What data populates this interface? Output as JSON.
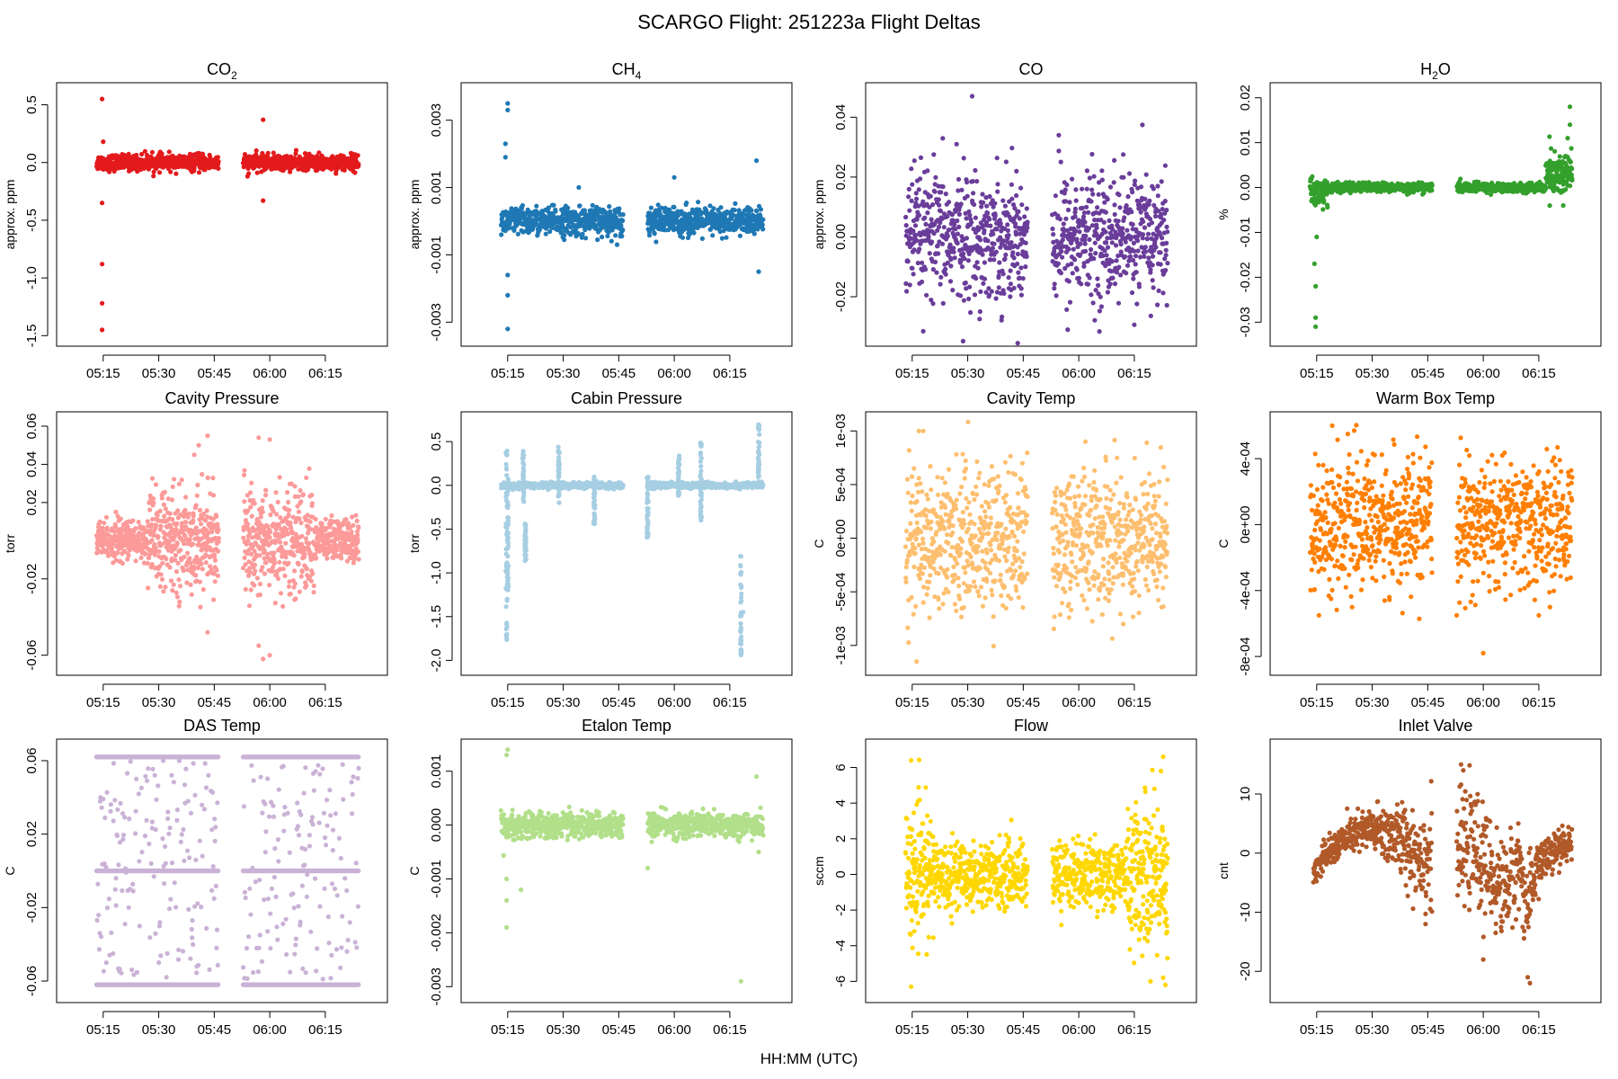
{
  "title": "SCARGO Flight: 251223a  Flight Deltas",
  "xlabel": "HH:MM (UTC)",
  "chart_data": [
    {
      "type": "scatter",
      "title_base": "CO",
      "title_sub": "2",
      "ylabel": "approx. ppm",
      "color": "#e31a1c",
      "ylim": [
        -1.5,
        0.6
      ],
      "yticks": [
        -1.5,
        -1.0,
        -0.5,
        0.0,
        0.5
      ],
      "yticklabels": [
        "-1.5",
        "-1.0",
        "-0.5",
        "0.0",
        "0.5"
      ],
      "xlim": [
        5.1,
        6.47
      ],
      "xticks": [
        5.25,
        5.5,
        5.75,
        6.0,
        6.25
      ],
      "xticklabels": [
        "05:15",
        "05:30",
        "05:45",
        "06:00",
        "06:15"
      ],
      "gap": [
        5.77,
        5.88
      ],
      "x_end": 6.4,
      "band": [
        {
          "x0": 5.22,
          "x1": 6.4,
          "c": 0.0,
          "hw": 0.08
        }
      ],
      "outliers": [
        [
          5.245,
          0.55
        ],
        [
          5.245,
          -1.45
        ],
        [
          5.245,
          -1.22
        ],
        [
          5.245,
          -0.88
        ],
        [
          5.245,
          -0.35
        ],
        [
          5.25,
          0.18
        ],
        [
          5.97,
          0.37
        ],
        [
          5.97,
          -0.33
        ],
        [
          5.9,
          -0.12
        ]
      ]
    },
    {
      "type": "scatter",
      "title_base": "CH",
      "title_sub": "4",
      "ylabel": "approx. ppm",
      "color": "#1f78b4",
      "ylim": [
        -0.0034,
        0.0038
      ],
      "yticks": [
        -0.003,
        -0.001,
        0.001,
        0.003
      ],
      "yticklabels": [
        "-0.003",
        "-0.001",
        "0.001",
        "0.003"
      ],
      "xlim": [
        5.1,
        6.47
      ],
      "xticks": [
        5.25,
        5.5,
        5.75,
        6.0,
        6.25
      ],
      "xticklabels": [
        "05:15",
        "05:30",
        "05:45",
        "06:00",
        "06:15"
      ],
      "gap": [
        5.77,
        5.88
      ],
      "x_end": 6.4,
      "band": [
        {
          "x0": 5.22,
          "x1": 6.4,
          "c": 0.0,
          "hw": 0.0005
        }
      ],
      "outliers": [
        [
          5.25,
          0.0033
        ],
        [
          5.25,
          0.0035
        ],
        [
          5.24,
          0.0023
        ],
        [
          5.24,
          0.0019
        ],
        [
          5.25,
          -0.0022
        ],
        [
          5.25,
          -0.0032
        ],
        [
          5.25,
          -0.0016
        ],
        [
          6.38,
          -0.0015
        ],
        [
          6.37,
          0.0018
        ],
        [
          6.0,
          0.0013
        ],
        [
          5.57,
          0.001
        ]
      ]
    },
    {
      "type": "scatter",
      "title_base": "CO",
      "title_sub": "",
      "ylabel": "approx. ppm",
      "color": "#6a3d9a",
      "ylim": [
        -0.033,
        0.048
      ],
      "yticks": [
        -0.02,
        0.0,
        0.02,
        0.04
      ],
      "yticklabels": [
        "-0.02",
        "0.00",
        "0.02",
        "0.04"
      ],
      "xlim": [
        5.1,
        6.47
      ],
      "xticks": [
        5.25,
        5.5,
        5.75,
        6.0,
        6.25
      ],
      "xticklabels": [
        "05:15",
        "05:30",
        "05:45",
        "06:00",
        "06:15"
      ],
      "gap": [
        5.77,
        5.88
      ],
      "x_end": 6.4,
      "band": [
        {
          "x0": 5.22,
          "x1": 6.4,
          "c": 0.0,
          "hw": 0.025
        }
      ],
      "outliers": [
        [
          5.52,
          0.047
        ],
        [
          5.45,
          0.031
        ],
        [
          5.91,
          0.034
        ],
        [
          5.95,
          -0.031
        ]
      ]
    },
    {
      "type": "scatter",
      "title_base": "H",
      "title_sub": "2",
      "title_tail": "O",
      "ylabel": "%",
      "color": "#33a02c",
      "ylim": [
        -0.033,
        0.021
      ],
      "yticks": [
        -0.03,
        -0.02,
        -0.01,
        0.0,
        0.01,
        0.02
      ],
      "yticklabels": [
        "-0.03",
        "-0.02",
        "-0.01",
        "0.00",
        "0.01",
        "0.02"
      ],
      "xlim": [
        5.1,
        6.47
      ],
      "xticks": [
        5.25,
        5.5,
        5.75,
        6.0,
        6.25
      ],
      "xticklabels": [
        "05:15",
        "05:30",
        "05:45",
        "06:00",
        "06:15"
      ],
      "gap": [
        5.77,
        5.88
      ],
      "x_end": 6.4,
      "band": [
        {
          "x0": 5.22,
          "x1": 5.3,
          "c": -0.001,
          "hw": 0.004
        },
        {
          "x0": 5.3,
          "x1": 6.28,
          "c": 0.0,
          "hw": 0.0012
        },
        {
          "x0": 6.28,
          "x1": 6.4,
          "c": 0.003,
          "hw": 0.006
        }
      ],
      "outliers": [
        [
          5.245,
          -0.031
        ],
        [
          5.245,
          -0.029
        ],
        [
          5.245,
          -0.022
        ],
        [
          5.24,
          -0.017
        ],
        [
          5.25,
          -0.011
        ],
        [
          6.39,
          0.018
        ],
        [
          6.39,
          0.014
        ],
        [
          6.38,
          0.011
        ],
        [
          6.37,
          0.007
        ],
        [
          6.36,
          -0.004
        ]
      ]
    },
    {
      "type": "scatter",
      "title_base": "Cavity Pressure",
      "title_sub": "",
      "ylabel": "torr",
      "color": "#fb9a99",
      "ylim": [
        -0.065,
        0.062
      ],
      "yticks": [
        -0.06,
        -0.02,
        0.02,
        0.04,
        0.06
      ],
      "yticklabels": [
        "-0.06",
        "-0.02",
        "0.02",
        "0.04",
        "0.06"
      ],
      "xlim": [
        5.1,
        6.47
      ],
      "xticks": [
        5.25,
        5.5,
        5.75,
        6.0,
        6.25
      ],
      "xticklabels": [
        "05:15",
        "05:30",
        "05:45",
        "06:00",
        "06:15"
      ],
      "gap": [
        5.77,
        5.88
      ],
      "x_end": 6.4,
      "band": [
        {
          "x0": 5.22,
          "x1": 5.45,
          "c": 0.0,
          "hw": 0.012
        },
        {
          "x0": 5.45,
          "x1": 5.77,
          "c": 0.0,
          "hw": 0.03
        },
        {
          "x0": 5.88,
          "x1": 6.2,
          "c": 0.0,
          "hw": 0.032
        },
        {
          "x0": 6.2,
          "x1": 6.4,
          "c": 0.0,
          "hw": 0.014
        }
      ],
      "outliers": [
        [
          5.72,
          0.055
        ],
        [
          5.68,
          0.05
        ],
        [
          5.95,
          0.054
        ],
        [
          6.0,
          0.053
        ],
        [
          5.72,
          -0.048
        ],
        [
          5.97,
          -0.062
        ],
        [
          6.0,
          -0.06
        ],
        [
          5.95,
          -0.055
        ],
        [
          5.66,
          0.045
        ]
      ]
    },
    {
      "type": "scatter",
      "title_base": "Cabin Pressure",
      "title_sub": "",
      "ylabel": "torr",
      "color": "#a6cee3",
      "ylim": [
        -2.05,
        0.72
      ],
      "yticks": [
        -2.0,
        -1.5,
        -1.0,
        -0.5,
        0.0,
        0.5
      ],
      "yticklabels": [
        "-2.0",
        "-1.5",
        "-1.0",
        "-0.5",
        "0.0",
        "0.5"
      ],
      "xlim": [
        5.1,
        6.47
      ],
      "xticks": [
        5.25,
        5.5,
        5.75,
        6.0,
        6.25
      ],
      "xticklabels": [
        "05:15",
        "05:30",
        "05:45",
        "06:00",
        "06:15"
      ],
      "gap": [
        5.77,
        5.88
      ],
      "x_end": 6.4,
      "band": [
        {
          "x0": 5.22,
          "x1": 6.4,
          "c": 0.0,
          "hw": 0.04
        }
      ],
      "spikes": [
        [
          5.245,
          -1.8,
          0.4
        ],
        [
          5.25,
          -1.2,
          0.1
        ],
        [
          5.32,
          -0.2,
          0.4
        ],
        [
          5.48,
          -0.2,
          0.45
        ],
        [
          5.64,
          -0.45,
          0.1
        ],
        [
          5.88,
          -0.6,
          0.1
        ],
        [
          6.02,
          -0.15,
          0.35
        ],
        [
          6.12,
          -0.4,
          0.5
        ],
        [
          6.3,
          -1.95,
          -0.8
        ],
        [
          6.38,
          0.0,
          0.7
        ],
        [
          5.33,
          -0.9,
          -0.4
        ]
      ],
      "outliers": [
        [
          5.245,
          -1.75
        ],
        [
          6.3,
          -1.9
        ],
        [
          6.31,
          -1.45
        ]
      ]
    },
    {
      "type": "scatter",
      "title_base": "Cavity Temp",
      "title_sub": "",
      "ylabel": "C",
      "color": "#fdbf6f",
      "ylim": [
        -0.00118,
        0.00108
      ],
      "yticks": [
        -0.001,
        -0.0005,
        0.0,
        0.0005,
        0.001
      ],
      "yticklabels": [
        "-1e-03",
        "-5e-04",
        "0e+00",
        "5e-04",
        "1e-03"
      ],
      "xlim": [
        5.1,
        6.47
      ],
      "xticks": [
        5.25,
        5.5,
        5.75,
        6.0,
        6.25
      ],
      "xticklabels": [
        "05:15",
        "05:30",
        "05:45",
        "06:00",
        "06:15"
      ],
      "gap": [
        5.77,
        5.88
      ],
      "x_end": 6.4,
      "band": [
        {
          "x0": 5.22,
          "x1": 6.4,
          "c": 0.0,
          "hw": 0.00078
        }
      ],
      "outliers": [
        [
          5.28,
          0.001
        ],
        [
          5.3,
          0.001
        ],
        [
          5.27,
          -0.00115
        ],
        [
          6.03,
          0.0009
        ],
        [
          6.2,
          -0.0008
        ]
      ]
    },
    {
      "type": "scatter",
      "title_base": "Warm Box Temp",
      "title_sub": "",
      "ylabel": "C",
      "color": "#ff7f00",
      "ylim": [
        -0.00085,
        0.00062
      ],
      "yticks": [
        -0.0008,
        -0.0004,
        0.0,
        0.0004
      ],
      "yticklabels": [
        "-8e-04",
        "-4e-04",
        "0e+00",
        "4e-04"
      ],
      "xlim": [
        5.1,
        6.47
      ],
      "xticks": [
        5.25,
        5.5,
        5.75,
        6.0,
        6.25
      ],
      "xticklabels": [
        "05:15",
        "05:30",
        "05:45",
        "06:00",
        "06:15"
      ],
      "gap": [
        5.77,
        5.88
      ],
      "x_end": 6.4,
      "band": [
        {
          "x0": 5.22,
          "x1": 6.4,
          "c": 0.0,
          "hw": 0.00045
        }
      ],
      "outliers": [
        [
          5.32,
          0.0006
        ],
        [
          5.39,
          0.00055
        ],
        [
          5.26,
          -0.00055
        ],
        [
          5.88,
          -0.00055
        ],
        [
          6.25,
          -0.00055
        ],
        [
          6.0,
          -0.00078
        ],
        [
          6.3,
          -0.0005
        ]
      ]
    },
    {
      "type": "scatter",
      "title_base": "DAS Temp",
      "title_sub": "",
      "ylabel": "C",
      "color": "#cab2d6",
      "ylim": [
        -0.066,
        0.066
      ],
      "yticks": [
        -0.06,
        -0.02,
        0.02,
        0.06
      ],
      "yticklabels": [
        "-0.06",
        "-0.02",
        "0.02",
        "0.06"
      ],
      "xlim": [
        5.1,
        6.47
      ],
      "xticks": [
        5.25,
        5.5,
        5.75,
        6.0,
        6.25
      ],
      "xticklabels": [
        "05:15",
        "05:30",
        "05:45",
        "06:00",
        "06:15"
      ],
      "gap": [
        5.77,
        5.88
      ],
      "x_end": 6.4,
      "levels": [
        0.062,
        0.0,
        -0.062
      ],
      "band": [
        {
          "x0": 5.22,
          "x1": 6.4,
          "c": 0.0,
          "hw": 0.06
        }
      ],
      "outliers": []
    },
    {
      "type": "scatter",
      "title_base": "Etalon Temp",
      "title_sub": "",
      "ylabel": "C",
      "color": "#b2df8a",
      "ylim": [
        -0.0031,
        0.0014
      ],
      "yticks": [
        -0.003,
        -0.002,
        -0.001,
        0.0,
        0.001
      ],
      "yticklabels": [
        "-0.003",
        "-0.002",
        "-0.001",
        "0.000",
        "0.001"
      ],
      "xlim": [
        5.1,
        6.47
      ],
      "xticks": [
        5.25,
        5.5,
        5.75,
        6.0,
        6.25
      ],
      "xticklabels": [
        "05:15",
        "05:30",
        "05:45",
        "06:00",
        "06:15"
      ],
      "gap": [
        5.77,
        5.88
      ],
      "x_end": 6.4,
      "band": [
        {
          "x0": 5.22,
          "x1": 6.4,
          "c": 0.0,
          "hw": 0.00028
        }
      ],
      "outliers": [
        [
          5.245,
          0.0013
        ],
        [
          5.25,
          0.0014
        ],
        [
          5.245,
          -0.0014
        ],
        [
          5.245,
          -0.0019
        ],
        [
          5.245,
          -0.001
        ],
        [
          5.31,
          -0.0012
        ],
        [
          6.3,
          -0.0029
        ],
        [
          5.88,
          -0.0008
        ],
        [
          6.37,
          0.0009
        ],
        [
          6.38,
          -0.0005
        ]
      ]
    },
    {
      "type": "scatter",
      "title_base": "Flow",
      "title_sub": "",
      "ylabel": "sccm",
      "color": "#ffd700",
      "ylim": [
        -6.6,
        7.0
      ],
      "yticks": [
        -6,
        -4,
        -2,
        0,
        2,
        4,
        6
      ],
      "yticklabels": [
        "-6",
        "-4",
        "-2",
        "0",
        "2",
        "4",
        "6"
      ],
      "xlim": [
        5.1,
        6.47
      ],
      "xticks": [
        5.25,
        5.5,
        5.75,
        6.0,
        6.25
      ],
      "xticklabels": [
        "05:15",
        "05:30",
        "05:45",
        "06:00",
        "06:15"
      ],
      "gap": [
        5.77,
        5.88
      ],
      "x_end": 6.4,
      "band": [
        {
          "x0": 5.22,
          "x1": 5.35,
          "c": 0.0,
          "hw": 4.0
        },
        {
          "x0": 5.35,
          "x1": 6.22,
          "c": 0.0,
          "hw": 2.2
        },
        {
          "x0": 6.22,
          "x1": 6.4,
          "c": 0.0,
          "hw": 5.0
        }
      ],
      "outliers": [
        [
          5.245,
          6.4
        ],
        [
          5.245,
          -6.3
        ],
        [
          6.38,
          6.6
        ],
        [
          6.39,
          -6.2
        ],
        [
          6.37,
          5.8
        ],
        [
          6.38,
          -5.8
        ]
      ]
    },
    {
      "type": "scatter",
      "title_base": "Inlet Valve",
      "title_sub": "",
      "ylabel": "cnt",
      "color": "#b15928",
      "ylim": [
        -23.5,
        17.5
      ],
      "yticks": [
        -20,
        -10,
        0,
        10
      ],
      "yticklabels": [
        "-20",
        "-10",
        "0",
        "10"
      ],
      "xlim": [
        5.1,
        6.47
      ],
      "xticks": [
        5.25,
        5.5,
        5.75,
        6.0,
        6.25
      ],
      "xticklabels": [
        "05:15",
        "05:30",
        "05:45",
        "06:00",
        "06:15"
      ],
      "gap": [
        5.77,
        5.88
      ],
      "x_end": 6.4,
      "trend": [
        [
          5.24,
          -3
        ],
        [
          5.3,
          0
        ],
        [
          5.4,
          3
        ],
        [
          5.5,
          4
        ],
        [
          5.6,
          3
        ],
        [
          5.7,
          0
        ],
        [
          5.76,
          -1
        ],
        [
          5.89,
          0
        ],
        [
          5.95,
          1
        ],
        [
          6.02,
          -3
        ],
        [
          6.08,
          -6
        ],
        [
          6.12,
          -5
        ],
        [
          6.16,
          -1
        ],
        [
          6.2,
          -10
        ],
        [
          6.24,
          -2
        ],
        [
          6.32,
          0
        ],
        [
          6.4,
          2
        ]
      ],
      "trend_hw": [
        [
          5.24,
          2
        ],
        [
          5.45,
          3
        ],
        [
          5.6,
          5
        ],
        [
          5.76,
          8
        ],
        [
          5.89,
          8
        ],
        [
          6.0,
          8
        ],
        [
          6.12,
          7
        ],
        [
          6.2,
          6
        ],
        [
          6.3,
          3
        ],
        [
          6.4,
          3
        ]
      ],
      "outliers": [
        [
          5.9,
          15
        ],
        [
          5.91,
          14
        ],
        [
          6.2,
          -21
        ],
        [
          6.21,
          -22
        ],
        [
          5.74,
          -12
        ],
        [
          6.0,
          -18
        ]
      ]
    }
  ]
}
